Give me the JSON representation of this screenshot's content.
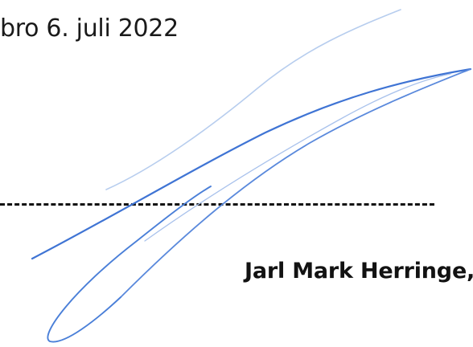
{
  "document": {
    "date_line": "bro 6. juli 2022",
    "separator": "---------------------------------------------------",
    "signer_name": "Jarl Mark Herringe, dirigent"
  },
  "signature": {
    "ink_color": "#3f74d4",
    "ink_color_light": "#9bb8e8"
  }
}
